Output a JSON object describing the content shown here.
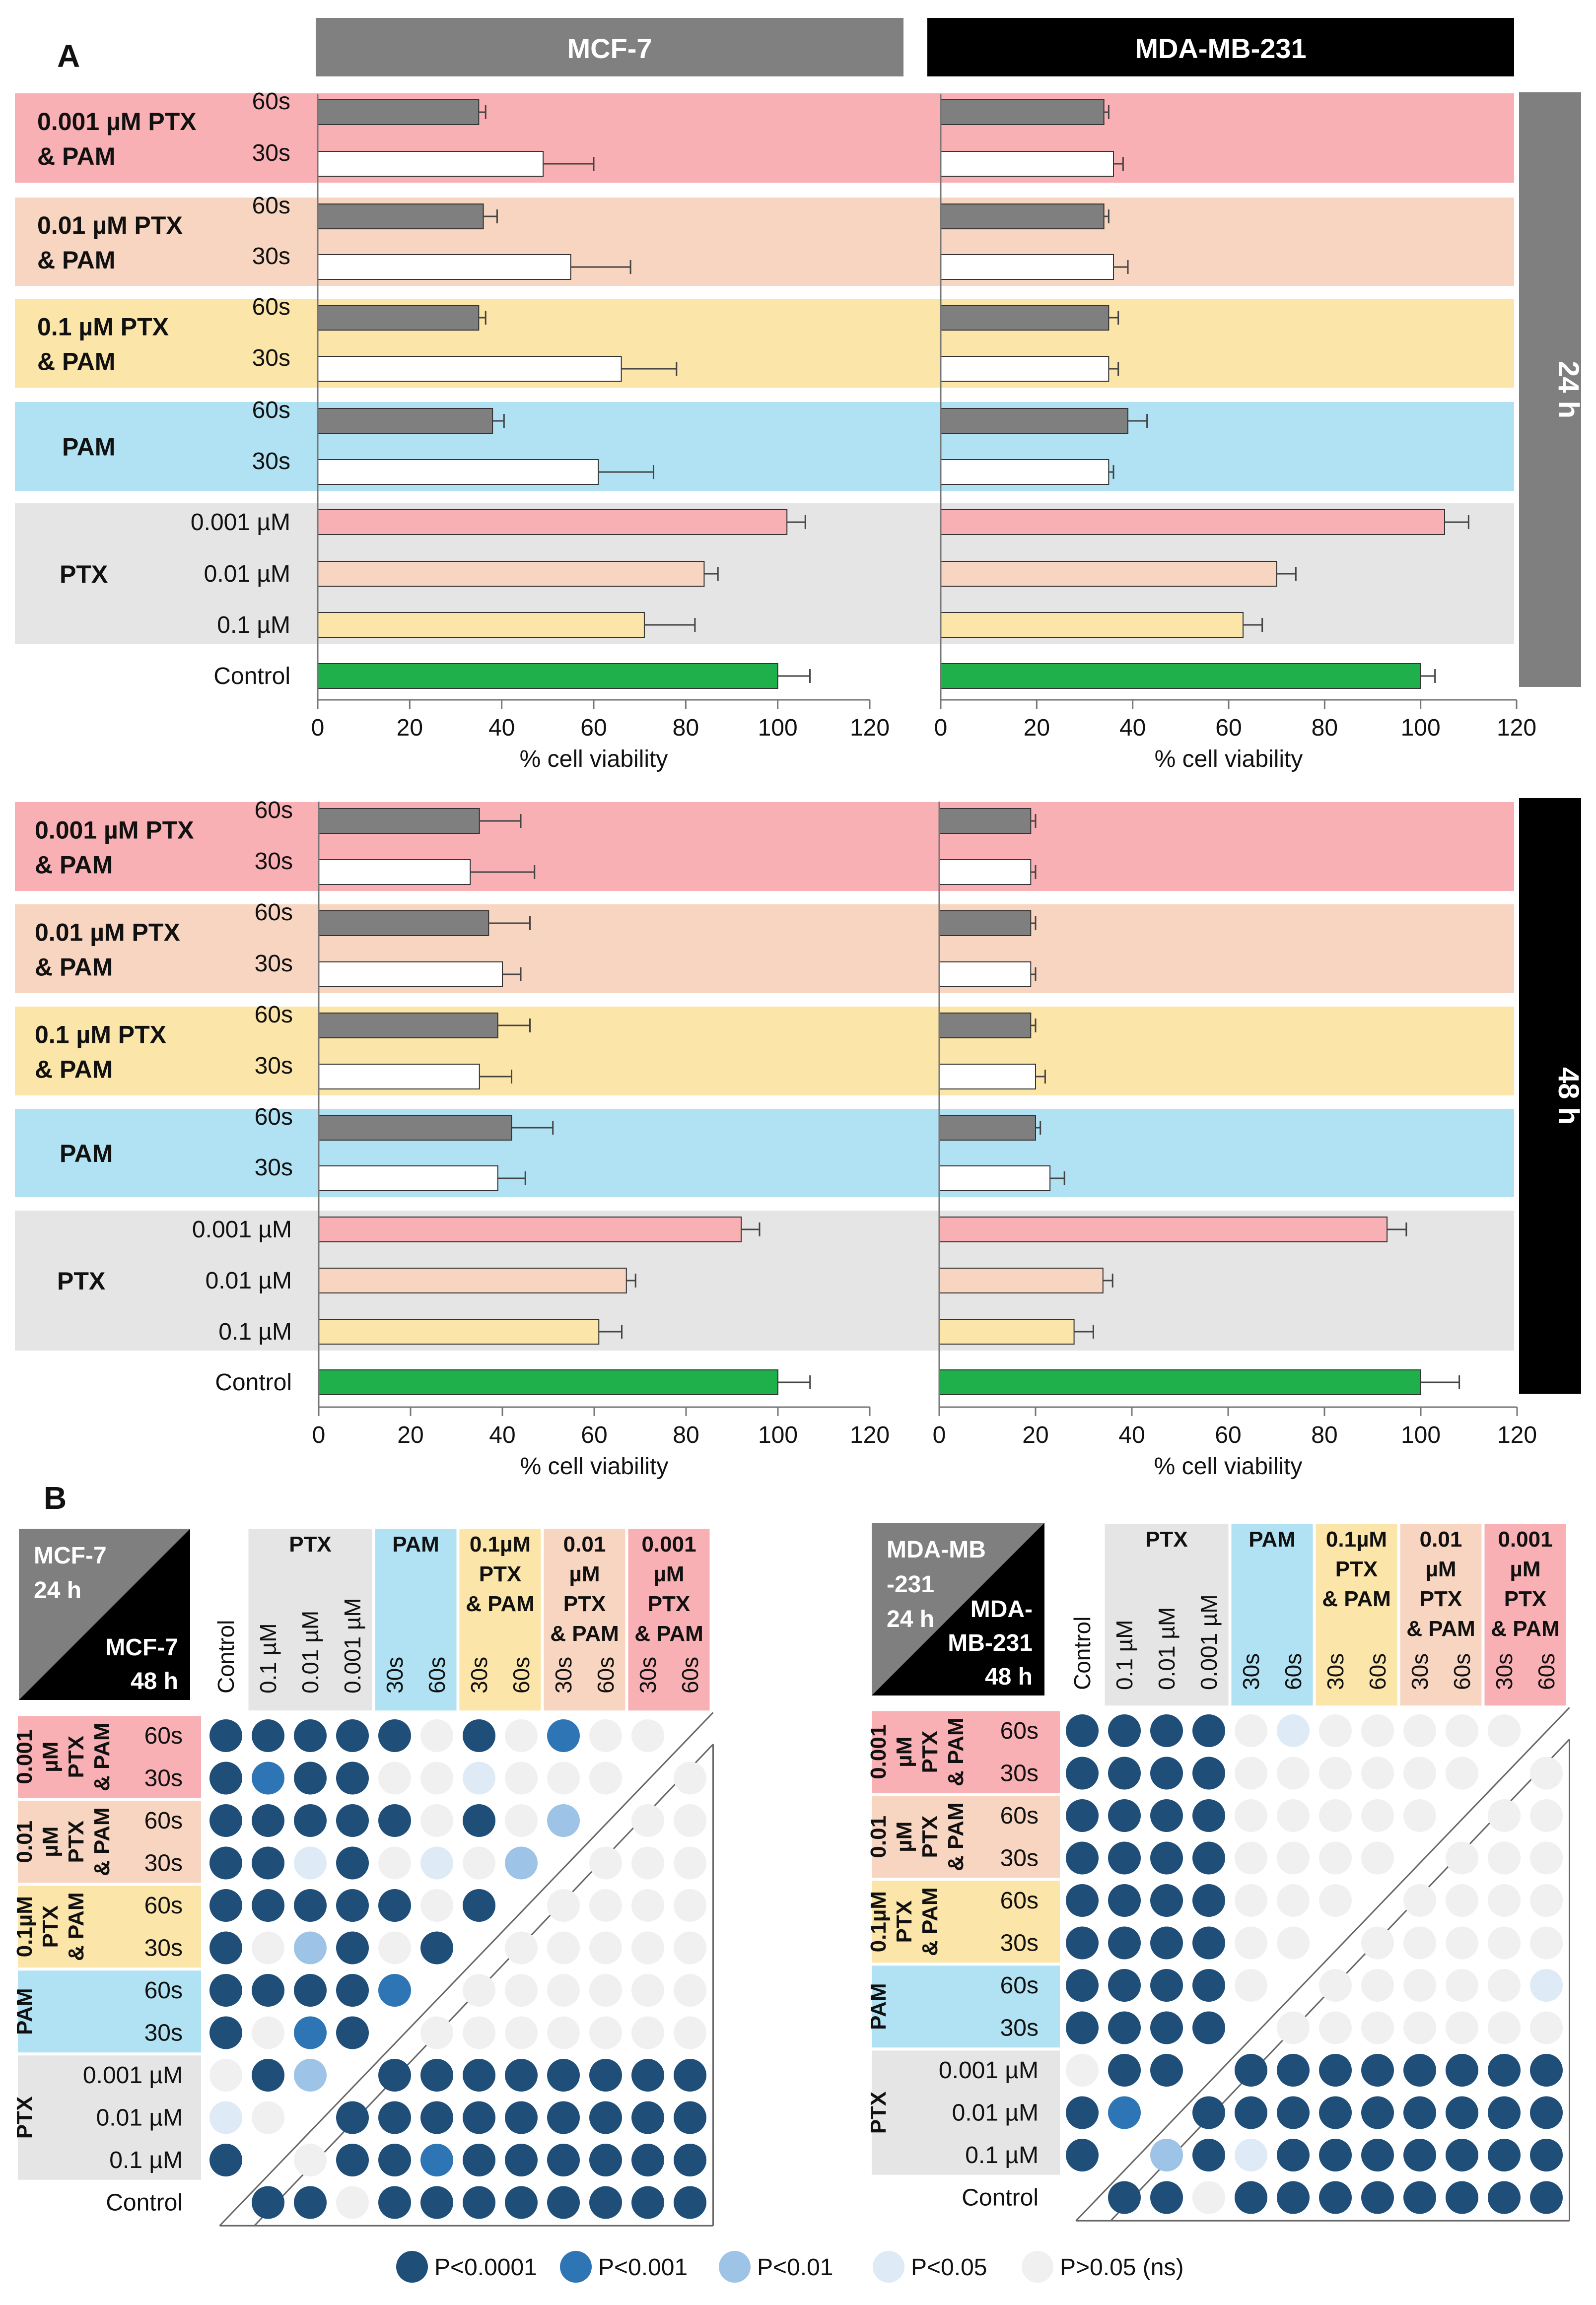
{
  "panel_labels": {
    "a": "A",
    "b": "B"
  },
  "timepoints": {
    "t24": "24 h",
    "t48": "48 h"
  },
  "colors": {
    "c001": "#f9b0b4",
    "c01": "#f8d5c1",
    "c1": "#fbe5a8",
    "pam": "#b0e2f4",
    "ptx": "#e5e5e5",
    "bar60": "#7f7f7f",
    "bar30": "#ffffff",
    "control": "#1fb04c",
    "dot_p0001": "#1f4e79",
    "dot_p001": "#2e75b6",
    "dot_p01": "#9dc3e6",
    "dot_p05": "#deebf7",
    "dot_ns": "#f0f0f0",
    "header_mcf7": "#808080",
    "header_mda": "#000000"
  },
  "chart_data": [
    {
      "type": "bar",
      "cell_line": "MCF-7",
      "time": "24 h",
      "orientation": "horizontal",
      "xlabel": "% cell viability",
      "xlim": [
        0,
        120
      ],
      "xticks": [
        0,
        20,
        40,
        60,
        80,
        100,
        120
      ],
      "categories": [
        "0.001 µM PTX & PAM 60s",
        "0.001 µM PTX & PAM 30s",
        "0.01 µM PTX & PAM 60s",
        "0.01 µM PTX & PAM 30s",
        "0.1 µM PTX & PAM 60s",
        "0.1 µM PTX & PAM 30s",
        "PAM 60s",
        "PAM 30s",
        "PTX 0.001 µM",
        "PTX 0.01 µM",
        "PTX 0.1 µM",
        "Control"
      ],
      "values": [
        35,
        49,
        36,
        55,
        35,
        66,
        38,
        61,
        102,
        84,
        71,
        100
      ],
      "errors": [
        1.5,
        11,
        3,
        13,
        1.5,
        12,
        2.5,
        12,
        4,
        3,
        11,
        7
      ]
    },
    {
      "type": "bar",
      "cell_line": "MDA-MB-231",
      "time": "24 h",
      "orientation": "horizontal",
      "xlabel": "% cell viability",
      "xlim": [
        0,
        120
      ],
      "xticks": [
        0,
        20,
        40,
        60,
        80,
        100,
        120
      ],
      "categories": [
        "0.001 µM PTX & PAM 60s",
        "0.001 µM PTX & PAM 30s",
        "0.01 µM PTX & PAM 60s",
        "0.01 µM PTX & PAM 30s",
        "0.1 µM PTX & PAM 60s",
        "0.1 µM PTX & PAM 30s",
        "PAM 60s",
        "PAM 30s",
        "PTX 0.001 µM",
        "PTX 0.01 µM",
        "PTX 0.1 µM",
        "Control"
      ],
      "values": [
        34,
        36,
        34,
        36,
        35,
        35,
        39,
        35,
        105,
        70,
        63,
        100
      ],
      "errors": [
        1,
        2,
        1,
        3,
        2,
        2,
        4,
        1,
        5,
        4,
        4,
        3
      ]
    },
    {
      "type": "bar",
      "cell_line": "MCF-7",
      "time": "48 h",
      "orientation": "horizontal",
      "xlabel": "% cell viability",
      "xlim": [
        0,
        120
      ],
      "xticks": [
        0,
        20,
        40,
        60,
        80,
        100,
        120
      ],
      "categories": [
        "0.001 µM PTX & PAM 60s",
        "0.001 µM PTX & PAM 30s",
        "0.01 µM PTX & PAM 60s",
        "0.01 µM PTX & PAM 30s",
        "0.1 µM PTX & PAM 60s",
        "0.1 µM PTX & PAM 30s",
        "PAM 60s",
        "PAM 30s",
        "PTX 0.001 µM",
        "PTX 0.01 µM",
        "PTX 0.1 µM",
        "Control"
      ],
      "values": [
        35,
        33,
        37,
        40,
        39,
        35,
        42,
        39,
        92,
        67,
        61,
        100
      ],
      "errors": [
        9,
        14,
        9,
        4,
        7,
        7,
        9,
        6,
        4,
        2,
        5,
        7
      ]
    },
    {
      "type": "bar",
      "cell_line": "MDA-MB-231",
      "time": "48 h",
      "orientation": "horizontal",
      "xlabel": "% cell viability",
      "xlim": [
        0,
        120
      ],
      "xticks": [
        0,
        20,
        40,
        60,
        80,
        100,
        120
      ],
      "categories": [
        "0.001 µM PTX & PAM 60s",
        "0.001 µM PTX & PAM 30s",
        "0.01 µM PTX & PAM 60s",
        "0.01 µM PTX & PAM 30s",
        "0.1 µM PTX & PAM 60s",
        "0.1 µM PTX & PAM 30s",
        "PAM 60s",
        "PAM 30s",
        "PTX 0.001 µM",
        "PTX 0.01 µM",
        "PTX 0.1 µM",
        "Control"
      ],
      "values": [
        19,
        19,
        19,
        19,
        19,
        20,
        20,
        23,
        93,
        34,
        28,
        100
      ],
      "errors": [
        1,
        1,
        1,
        1,
        1,
        2,
        1,
        3,
        4,
        2,
        4,
        8
      ]
    },
    {
      "type": "heatmap",
      "cell_line": "MCF-7",
      "upper_triangle": "24 h",
      "lower_triangle": "48 h",
      "rows": [
        "0.001 µM PTX & PAM 60s",
        "0.001 µM PTX & PAM 30s",
        "0.01 µM PTX & PAM 60s",
        "0.01 µM PTX & PAM 30s",
        "0.1µM PTX & PAM 60s",
        "0.1µM PTX & PAM 30s",
        "PAM 60s",
        "PAM 30s",
        "PTX 0.001 µM",
        "PTX 0.01 µM",
        "PTX 0.1 µM",
        "Control"
      ],
      "columns": [
        "Control",
        "PTX 0.1 µM",
        "PTX 0.01 µM",
        "PTX 0.001 µM",
        "PAM 30s",
        "PAM 60s",
        "0.1µM PTX & PAM 30s",
        "0.1µM PTX & PAM 60s",
        "0.01 µM PTX & PAM 30s",
        "0.01 µM PTX & PAM 60s",
        "0.001 µM PTX & PAM 30s",
        "0.001 µM PTX & PAM 60s"
      ],
      "levels": [
        "P<0.0001",
        "P<0.001",
        "P<0.01",
        "P<0.05",
        "P>0.05 (ns)"
      ],
      "matrix": [
        [
          0,
          0,
          0,
          0,
          0,
          4,
          0,
          4,
          1,
          4,
          4,
          null
        ],
        [
          0,
          1,
          0,
          0,
          4,
          4,
          3,
          4,
          4,
          4,
          null,
          4
        ],
        [
          0,
          0,
          0,
          0,
          0,
          4,
          0,
          4,
          2,
          null,
          4,
          4
        ],
        [
          0,
          0,
          3,
          0,
          4,
          3,
          4,
          2,
          null,
          4,
          4,
          4
        ],
        [
          0,
          0,
          0,
          0,
          0,
          4,
          0,
          null,
          4,
          4,
          4,
          4
        ],
        [
          0,
          4,
          2,
          0,
          4,
          0,
          null,
          4,
          4,
          4,
          4,
          4
        ],
        [
          0,
          0,
          0,
          0,
          1,
          null,
          4,
          4,
          4,
          4,
          4,
          4
        ],
        [
          0,
          4,
          1,
          0,
          null,
          4,
          4,
          4,
          4,
          4,
          4,
          4
        ],
        [
          4,
          0,
          2,
          null,
          0,
          0,
          0,
          0,
          0,
          0,
          0,
          0
        ],
        [
          3,
          4,
          null,
          0,
          0,
          0,
          0,
          0,
          0,
          0,
          0,
          0
        ],
        [
          0,
          null,
          4,
          0,
          0,
          1,
          0,
          0,
          0,
          0,
          0,
          0
        ],
        [
          null,
          0,
          0,
          4,
          0,
          0,
          0,
          0,
          0,
          0,
          0,
          0
        ]
      ]
    },
    {
      "type": "heatmap",
      "cell_line": "MDA-MB-231",
      "upper_triangle": "24 h",
      "lower_triangle": "48 h",
      "rows": [
        "0.001 µM PTX & PAM 60s",
        "0.001 µM PTX & PAM 30s",
        "0.01 µM PTX & PAM 60s",
        "0.01 µM PTX & PAM 30s",
        "0.1µM PTX & PAM 60s",
        "0.1µM PTX & PAM 30s",
        "PAM 60s",
        "PAM 30s",
        "PTX 0.001 µM",
        "PTX 0.01 µM",
        "PTX 0.1 µM",
        "Control"
      ],
      "columns": [
        "Control",
        "PTX 0.1 µM",
        "PTX 0.01 µM",
        "PTX 0.001 µM",
        "PAM 30s",
        "PAM 60s",
        "0.1µM PTX & PAM 30s",
        "0.1µM PTX & PAM 60s",
        "0.01 µM PTX & PAM 30s",
        "0.01 µM PTX & PAM 60s",
        "0.001 µM PTX & PAM 30s",
        "0.001 µM PTX & PAM 60s"
      ],
      "levels": [
        "P<0.0001",
        "P<0.001",
        "P<0.01",
        "P<0.05",
        "P>0.05 (ns)"
      ],
      "matrix": [
        [
          0,
          0,
          0,
          0,
          4,
          3,
          4,
          4,
          4,
          4,
          4,
          null
        ],
        [
          0,
          0,
          0,
          0,
          4,
          4,
          4,
          4,
          4,
          4,
          null,
          4
        ],
        [
          0,
          0,
          0,
          0,
          4,
          4,
          4,
          4,
          4,
          null,
          4,
          4
        ],
        [
          0,
          0,
          0,
          0,
          4,
          4,
          4,
          4,
          null,
          4,
          4,
          4
        ],
        [
          0,
          0,
          0,
          0,
          4,
          4,
          4,
          null,
          4,
          4,
          4,
          4
        ],
        [
          0,
          0,
          0,
          0,
          4,
          4,
          null,
          4,
          4,
          4,
          4,
          4
        ],
        [
          0,
          0,
          0,
          0,
          4,
          null,
          4,
          4,
          4,
          4,
          4,
          3
        ],
        [
          0,
          0,
          0,
          0,
          null,
          4,
          4,
          4,
          4,
          4,
          4,
          4
        ],
        [
          4,
          0,
          0,
          null,
          0,
          0,
          0,
          0,
          0,
          0,
          0,
          0
        ],
        [
          0,
          1,
          null,
          0,
          0,
          0,
          0,
          0,
          0,
          0,
          0,
          0
        ],
        [
          0,
          null,
          2,
          0,
          3,
          0,
          0,
          0,
          0,
          0,
          0,
          0
        ],
        [
          null,
          0,
          0,
          4,
          0,
          0,
          0,
          0,
          0,
          0,
          0,
          0
        ]
      ]
    }
  ],
  "bar_panels": {
    "headers": {
      "mcf7": "MCF-7",
      "mda": "MDA-MB-231"
    },
    "groups": [
      {
        "line1": "0.001 µM PTX",
        "line2": "& PAM",
        "sub": [
          "60s",
          "30s"
        ]
      },
      {
        "line1": "0.01 µM PTX",
        "line2": "& PAM",
        "sub": [
          "60s",
          "30s"
        ]
      },
      {
        "line1": "0.1 µM PTX",
        "line2": "& PAM",
        "sub": [
          "60s",
          "30s"
        ]
      },
      {
        "line1": "PAM",
        "line2": "",
        "sub": [
          "60s",
          "30s"
        ]
      },
      {
        "line1": "PTX",
        "line2": "",
        "sub": [
          "0.001 µM",
          "0.01 µM",
          "0.1 µM"
        ]
      }
    ],
    "control_label": "Control"
  },
  "matrix_panels": {
    "mcf7": {
      "corner_upper": [
        "MCF-7",
        "24 h"
      ],
      "corner_lower": [
        "MCF-7",
        "48 h"
      ]
    },
    "mda": {
      "corner_upper": [
        "MDA-MB",
        "-231",
        "24 h"
      ],
      "corner_lower": [
        "MDA-",
        "MB-231",
        "48 h"
      ]
    },
    "col_groups": [
      {
        "lines": [
          "PTX"
        ],
        "color": "ptx",
        "span": 3
      },
      {
        "lines": [
          "PAM"
        ],
        "color": "pam",
        "span": 2
      },
      {
        "lines": [
          "0.1µM",
          "PTX",
          "& PAM"
        ],
        "color": "c1",
        "span": 2
      },
      {
        "lines": [
          "0.01",
          "µM",
          "PTX",
          "& PAM"
        ],
        "color": "c01",
        "span": 2
      },
      {
        "lines": [
          "0.001",
          "µM",
          "PTX",
          "& PAM"
        ],
        "color": "c001",
        "span": 2
      }
    ],
    "col_labels": [
      "Control",
      "0.1 µM",
      "0.01 µM",
      "0.001 µM",
      "30s",
      "60s",
      "30s",
      "60s",
      "30s",
      "60s",
      "30s",
      "60s"
    ],
    "row_groups": [
      {
        "lines": [
          "0.001",
          "µM",
          "PTX",
          "& PAM"
        ],
        "color": "c001",
        "sub": [
          "60s",
          "30s"
        ]
      },
      {
        "lines": [
          "0.01",
          "µM",
          "PTX",
          "& PAM"
        ],
        "color": "c01",
        "sub": [
          "60s",
          "30s"
        ]
      },
      {
        "lines": [
          "0.1µM",
          "PTX",
          "& PAM"
        ],
        "color": "c1",
        "sub": [
          "60s",
          "30s"
        ]
      },
      {
        "lines": [
          "PAM"
        ],
        "color": "pam",
        "sub": [
          "60s",
          "30s"
        ]
      },
      {
        "lines": [
          "PTX"
        ],
        "color": "ptx",
        "sub": [
          "0.001 µM",
          "0.01 µM",
          "0.1 µM"
        ]
      }
    ],
    "control_label": "Control"
  },
  "legend": [
    {
      "label": "P<0.0001",
      "level": 0
    },
    {
      "label": "P<0.001",
      "level": 1
    },
    {
      "label": "P<0.01",
      "level": 2
    },
    {
      "label": "P<0.05",
      "level": 3
    },
    {
      "label": "P>0.05 (ns)",
      "level": 4
    }
  ]
}
